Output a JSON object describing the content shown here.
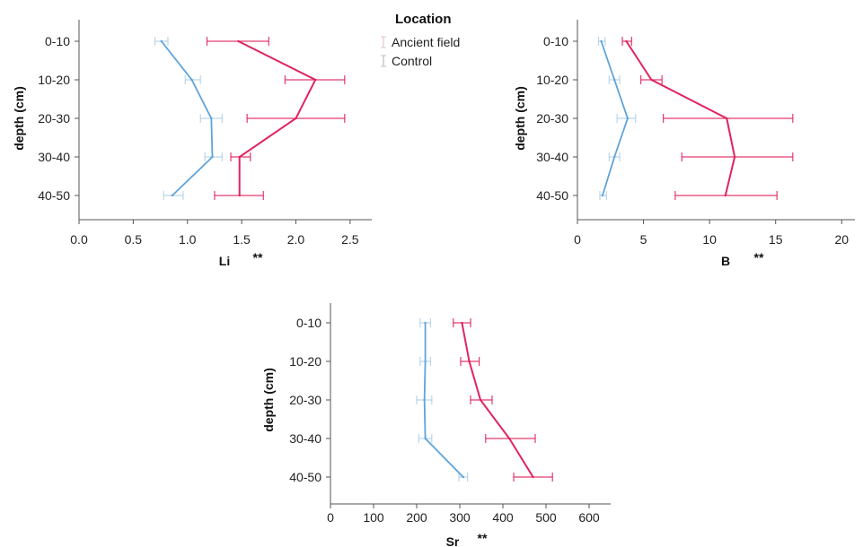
{
  "legend": {
    "title": "Location",
    "items": [
      {
        "label": "Ancient field",
        "color": "#e8cfd8"
      },
      {
        "label": "Control",
        "color": "#c9c9c9"
      }
    ]
  },
  "colors": {
    "ancient": "#e0245e",
    "control": "#5fa3d9",
    "ancient_err": "#e0245e",
    "control_err": "#a9cce8"
  },
  "chart_data": [
    {
      "type": "line",
      "xlabel": "Li",
      "significance": "**",
      "ylabel": "depth (cm)",
      "categories": [
        "0-10",
        "10-20",
        "20-30",
        "30-40",
        "40-50"
      ],
      "xlim": [
        0,
        2.7
      ],
      "xticks": [
        "0.0",
        "0.5",
        "1.0",
        "1.5",
        "2.0",
        "2.5"
      ],
      "xtick_values": [
        0,
        0.5,
        1.0,
        1.5,
        2.0,
        2.5
      ],
      "series": [
        {
          "name": "Ancient field",
          "values": [
            1.47,
            2.18,
            2.0,
            1.48,
            1.48
          ],
          "err_low": [
            1.18,
            1.9,
            1.55,
            1.4,
            1.25
          ],
          "err_high": [
            1.75,
            2.45,
            2.45,
            1.58,
            1.7
          ]
        },
        {
          "name": "Control",
          "values": [
            0.76,
            1.04,
            1.22,
            1.23,
            0.86
          ],
          "err_low": [
            0.7,
            0.98,
            1.12,
            1.16,
            0.78
          ],
          "err_high": [
            0.82,
            1.12,
            1.32,
            1.32,
            0.96
          ]
        }
      ]
    },
    {
      "type": "line",
      "xlabel": "B",
      "significance": "**",
      "ylabel": "depth (cm)",
      "categories": [
        "0-10",
        "10-20",
        "20-30",
        "30-40",
        "40-50"
      ],
      "xlim": [
        0,
        21
      ],
      "xticks": [
        "0",
        "5",
        "10",
        "15",
        "20"
      ],
      "xtick_values": [
        0,
        5,
        10,
        15,
        20
      ],
      "series": [
        {
          "name": "Ancient field",
          "values": [
            3.7,
            5.6,
            11.3,
            11.9,
            11.2
          ],
          "err_low": [
            3.4,
            4.8,
            6.5,
            7.9,
            7.4
          ],
          "err_high": [
            4.1,
            6.4,
            16.3,
            16.3,
            15.1
          ]
        },
        {
          "name": "Control",
          "values": [
            1.8,
            2.8,
            3.8,
            2.8,
            1.9
          ],
          "err_low": [
            1.6,
            2.4,
            3.0,
            2.4,
            1.7
          ],
          "err_high": [
            2.1,
            3.2,
            4.4,
            3.2,
            2.2
          ]
        }
      ]
    },
    {
      "type": "line",
      "xlabel": "Sr",
      "significance": "**",
      "ylabel": "depth (cm)",
      "categories": [
        "0-10",
        "10-20",
        "20-30",
        "30-40",
        "40-50"
      ],
      "xlim": [
        0,
        650
      ],
      "xticks": [
        "0",
        "100",
        "200",
        "300",
        "400",
        "500",
        "600"
      ],
      "xtick_values": [
        0,
        100,
        200,
        300,
        400,
        500,
        600
      ],
      "series": [
        {
          "name": "Ancient field",
          "values": [
            305,
            322,
            348,
            415,
            470
          ],
          "err_low": [
            285,
            302,
            325,
            360,
            425
          ],
          "err_high": [
            325,
            345,
            375,
            475,
            515
          ]
        },
        {
          "name": "Control",
          "values": [
            220,
            220,
            218,
            220,
            308
          ],
          "err_low": [
            208,
            208,
            200,
            205,
            298
          ],
          "err_high": [
            232,
            232,
            235,
            235,
            318
          ]
        }
      ]
    }
  ]
}
